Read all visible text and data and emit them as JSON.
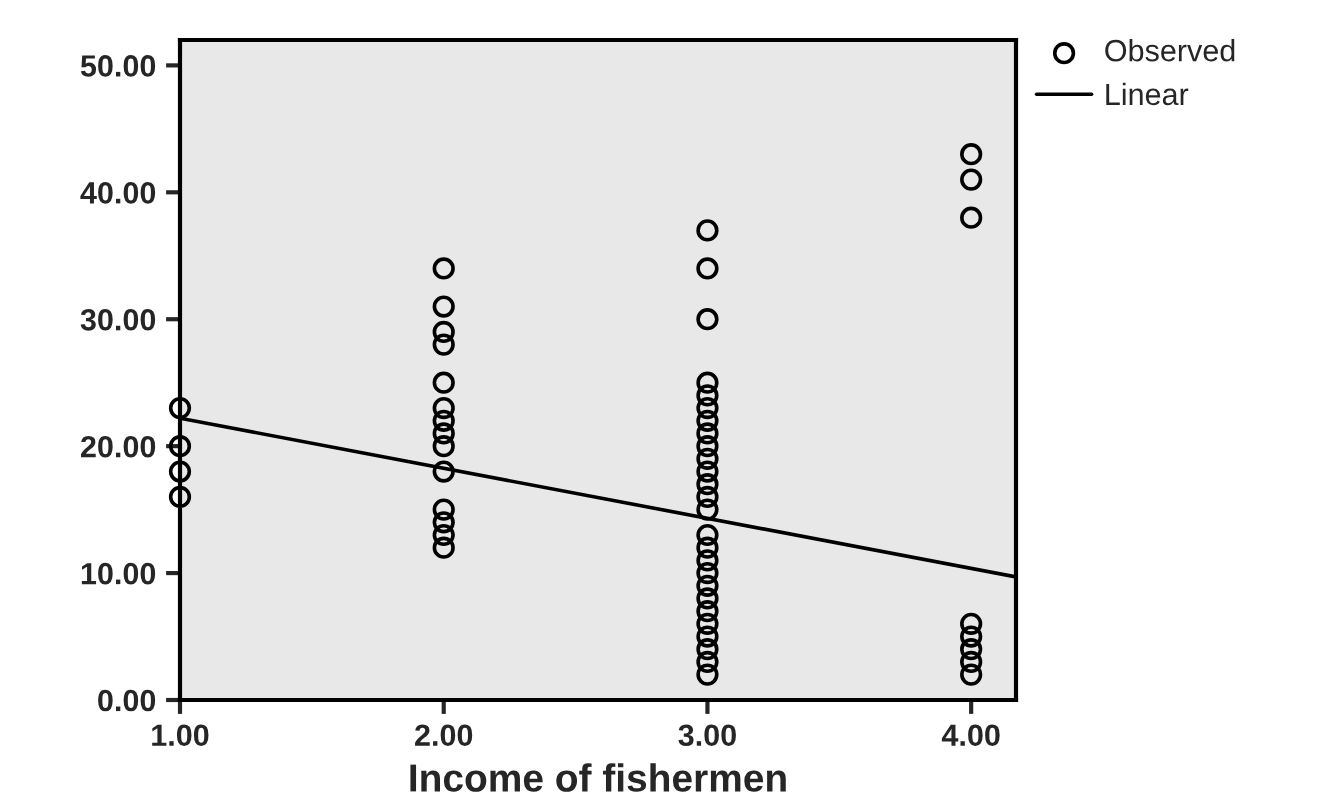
{
  "chart_data": {
    "type": "scatter",
    "xlabel": "Income of fishermen",
    "xlim": [
      1,
      4.17
    ],
    "ylim": [
      0,
      52
    ],
    "xticks": [
      {
        "value": 1,
        "label": "1.00"
      },
      {
        "value": 2,
        "label": "2.00"
      },
      {
        "value": 3,
        "label": "3.00"
      },
      {
        "value": 4,
        "label": "4.00"
      }
    ],
    "yticks": [
      {
        "value": 0,
        "label": "0.00"
      },
      {
        "value": 10,
        "label": "10.00"
      },
      {
        "value": 20,
        "label": "20.00"
      },
      {
        "value": 30,
        "label": "30.00"
      },
      {
        "value": 40,
        "label": "40.00"
      },
      {
        "value": 50,
        "label": "50.00"
      }
    ],
    "grid": false,
    "legend": "top right",
    "series": [
      {
        "name": "Observed",
        "marker": "circle",
        "color": "#000000",
        "x": [
          1,
          1,
          1,
          1,
          2,
          2,
          2,
          2,
          2,
          2,
          2,
          2,
          2,
          2,
          2,
          2,
          2,
          2,
          3,
          3,
          3,
          3,
          3,
          3,
          3,
          3,
          3,
          3,
          3,
          3,
          3,
          3,
          3,
          3,
          3,
          3,
          3,
          3,
          3,
          3,
          3,
          3,
          3,
          3,
          4,
          4,
          4,
          4,
          4,
          4,
          4,
          4
        ],
        "values": [
          23,
          20,
          18,
          16,
          34,
          31,
          29,
          28,
          25,
          23,
          22,
          21,
          20,
          18,
          15,
          14,
          13,
          12,
          37,
          34,
          30,
          25,
          24,
          23,
          22,
          21,
          20,
          19,
          18,
          17,
          16,
          15,
          13,
          12,
          11,
          10,
          9,
          8,
          7,
          6,
          5,
          4,
          3,
          2,
          43,
          41,
          38,
          6,
          5,
          4,
          3,
          2
        ]
      },
      {
        "name": "Linear",
        "type": "line",
        "color": "#000000",
        "x": [
          1,
          4.17
        ],
        "values": [
          22.2,
          9.7
        ],
        "line_style": "solid",
        "marker": "none"
      }
    ]
  }
}
